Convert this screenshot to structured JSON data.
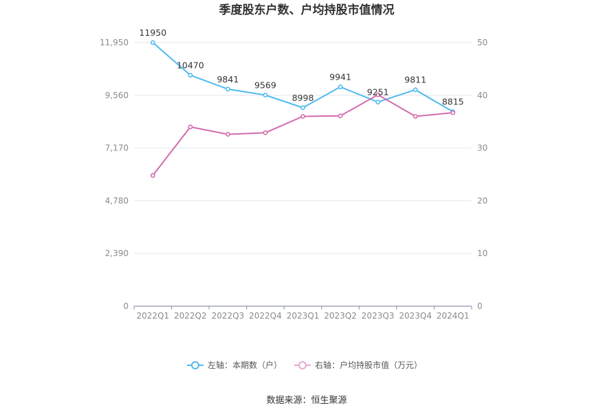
{
  "chart_data": {
    "type": "line",
    "title": "季度股东户数、户均持股市值情况",
    "categories": [
      "2022Q1",
      "2022Q2",
      "2022Q3",
      "2022Q4",
      "2023Q1",
      "2023Q2",
      "2023Q3",
      "2023Q4",
      "2024Q1"
    ],
    "series": [
      {
        "name": "左轴：本期数（户）",
        "axis": "left",
        "color": "#4dbbef",
        "values": [
          11950,
          10470,
          9841,
          9569,
          8998,
          9941,
          9251,
          9811,
          8815
        ],
        "labels": [
          "11950",
          "10470",
          "9841",
          "9569",
          "8998",
          "9941",
          "9251",
          "9811",
          "8815"
        ]
      },
      {
        "name": "右轴：户均持股市值（万元）",
        "axis": "right",
        "color": "#d36aae",
        "values": [
          24.8,
          34.0,
          32.6,
          32.9,
          36.0,
          36.1,
          40.1,
          36.0,
          36.7
        ]
      }
    ],
    "left_axis": {
      "min": 0,
      "max": 11950,
      "ticks": [
        0,
        2390,
        4780,
        7170,
        9560,
        11950
      ],
      "tick_labels": [
        "0",
        "2,390",
        "4,780",
        "7,170",
        "9,560",
        "11,950"
      ]
    },
    "right_axis": {
      "min": 0,
      "max": 50,
      "ticks": [
        0,
        10,
        20,
        30,
        40,
        50
      ],
      "tick_labels": [
        "0",
        "10",
        "20",
        "30",
        "40",
        "50"
      ]
    },
    "grid": true,
    "legend_position": "bottom"
  },
  "source_text": "数据来源：恒生聚源"
}
